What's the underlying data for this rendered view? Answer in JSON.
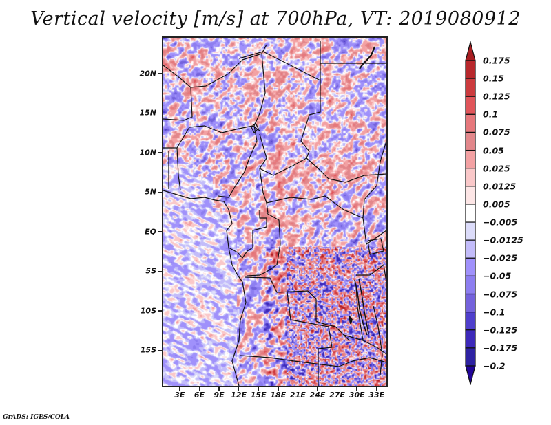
{
  "chart_data": {
    "type": "heatmap",
    "title": "Vertical velocity [m/s] at 700hPa, VT: 2019080912",
    "variable": "Vertical velocity",
    "units": "m/s",
    "level": "700hPa",
    "valid_time": "2019080912",
    "xlabel": "",
    "ylabel": "",
    "x_ticks": [
      "3E",
      "6E",
      "9E",
      "12E",
      "15E",
      "18E",
      "21E",
      "24E",
      "27E",
      "30E",
      "33E"
    ],
    "x_tick_values": [
      3,
      6,
      9,
      12,
      15,
      18,
      21,
      24,
      27,
      30,
      33
    ],
    "y_ticks": [
      "20N",
      "15N",
      "10N",
      "5N",
      "EQ",
      "5S",
      "10S",
      "15S"
    ],
    "y_tick_values": [
      20,
      15,
      10,
      5,
      0,
      -5,
      -10,
      -15
    ],
    "xlim": [
      0.5,
      34.5
    ],
    "ylim": [
      -19.5,
      24.5
    ],
    "grid": false,
    "legend_placement": "right",
    "colorbar": {
      "orientation": "vertical",
      "extend": "both",
      "levels": [
        0.175,
        0.15,
        0.125,
        0.1,
        0.075,
        0.05,
        0.025,
        0.0125,
        0.005,
        -0.005,
        -0.0125,
        -0.025,
        -0.05,
        -0.075,
        -0.1,
        -0.125,
        -0.175,
        -0.2
      ],
      "labels": [
        "0.175",
        "0.15",
        "0.125",
        "0.1",
        "0.075",
        "0.05",
        "0.025",
        "0.0125",
        "0.005",
        "−0.005",
        "−0.0125",
        "−0.025",
        "−0.05",
        "−0.075",
        "−0.1",
        "−0.125",
        "−0.175",
        "−0.2"
      ],
      "colors_top_to_bottom": [
        "#a81e22",
        "#b8282c",
        "#cc3b3e",
        "#e0555a",
        "#e6787c",
        "#e2878b",
        "#f3a1a3",
        "#fac8c9",
        "#fde6e6",
        "#ffffff",
        "#dcdcfa",
        "#c3bcfa",
        "#a091fb",
        "#8d7ef0",
        "#7462dc",
        "#4f3fcc",
        "#3d29ba",
        "#2e22a2",
        "#22059a"
      ]
    },
    "map_region": "Central Africa (Gulf of Guinea, Congo Basin, Angola, East African Rift)"
  },
  "footer": {
    "credit": "GrADS: IGES/COLA"
  }
}
